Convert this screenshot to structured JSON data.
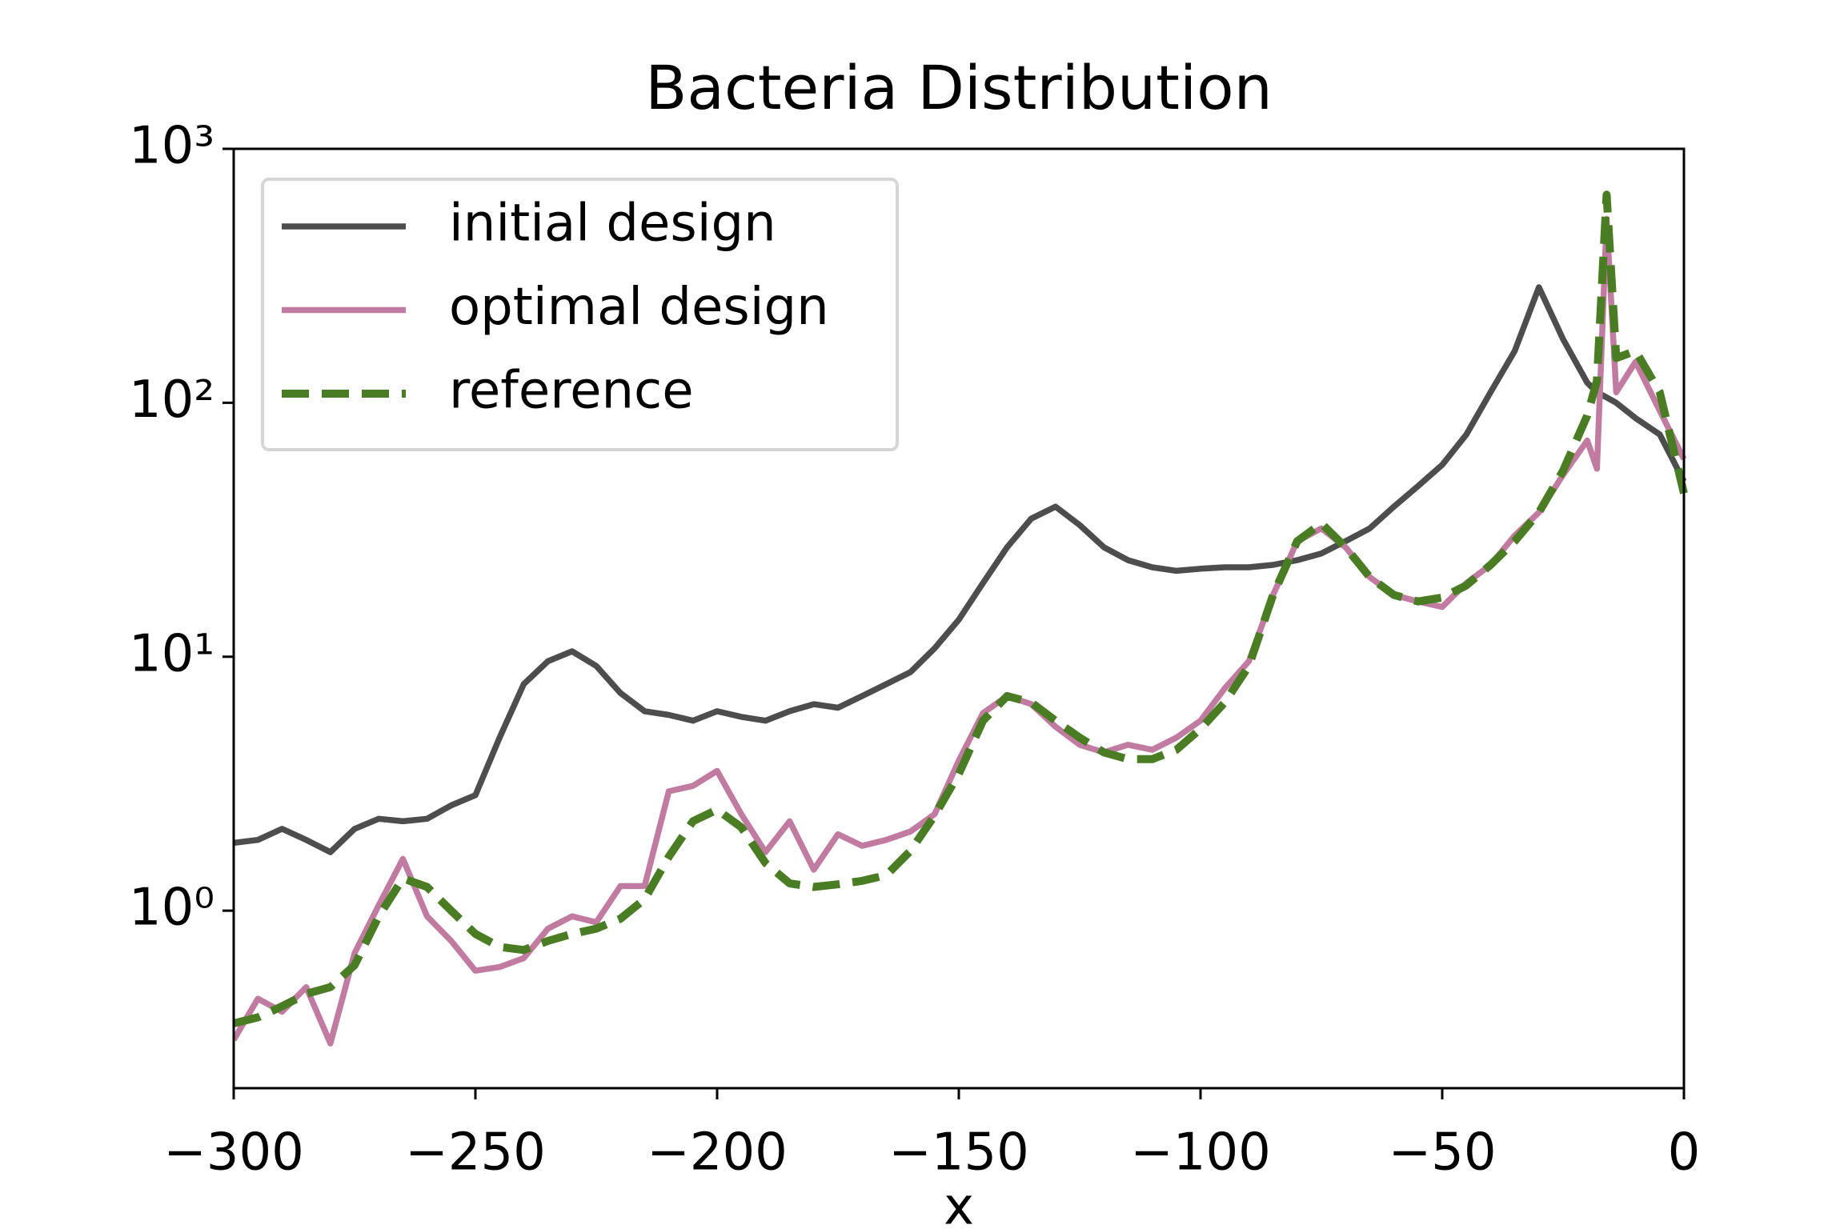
{
  "chart_data": {
    "type": "line",
    "title": "Bacteria Distribution",
    "x_label": "x",
    "log_y": true,
    "xlim": [
      -300,
      0
    ],
    "ylim": [
      0.2,
      1000
    ],
    "xticks": [
      {
        "value": -300,
        "label": "−300"
      },
      {
        "value": -250,
        "label": "−250"
      },
      {
        "value": -200,
        "label": "−200"
      },
      {
        "value": -150,
        "label": "−150"
      },
      {
        "value": -100,
        "label": "−100"
      },
      {
        "value": -50,
        "label": "−50"
      },
      0
    ],
    "yticks": [
      {
        "value": 1,
        "label": "10⁰"
      },
      {
        "value": 10,
        "label": "10¹"
      },
      {
        "value": 100,
        "label": "10²"
      },
      {
        "value": 1000,
        "label": "10³"
      }
    ],
    "legend_position": "upper-left",
    "x": [
      -300,
      -295,
      -290,
      -285,
      -280,
      -275,
      -270,
      -265,
      -260,
      -255,
      -250,
      -245,
      -240,
      -235,
      -230,
      -225,
      -220,
      -215,
      -210,
      -205,
      -200,
      -195,
      -190,
      -185,
      -180,
      -175,
      -170,
      -165,
      -160,
      -155,
      -150,
      -145,
      -140,
      -135,
      -130,
      -125,
      -120,
      -115,
      -110,
      -105,
      -100,
      -95,
      -90,
      -85,
      -80,
      -75,
      -70,
      -65,
      -60,
      -55,
      -50,
      -45,
      -40,
      -35,
      -30,
      -25,
      -20,
      -18,
      -16,
      -14,
      -10,
      -5,
      0
    ],
    "series": [
      {
        "name": "initial design",
        "color": "#4d4d4d",
        "dashed": false,
        "values": [
          1.85,
          1.9,
          2.1,
          1.9,
          1.7,
          2.1,
          2.3,
          2.25,
          2.3,
          2.6,
          2.85,
          4.8,
          7.8,
          9.6,
          10.5,
          9.2,
          7.2,
          6.1,
          5.9,
          5.6,
          6.1,
          5.8,
          5.6,
          6.1,
          6.5,
          6.3,
          7.0,
          7.8,
          8.7,
          10.8,
          14,
          19.5,
          27,
          35,
          39,
          33,
          27,
          24,
          22.5,
          21.8,
          22.2,
          22.5,
          22.5,
          23,
          24,
          25.5,
          28.5,
          32,
          39,
          47,
          57,
          75,
          110,
          160,
          285,
          178,
          120,
          110,
          105,
          100,
          87,
          75,
          49
        ]
      },
      {
        "name": "optimal design",
        "color": "#c27ba0",
        "dashed": false,
        "values": [
          0.31,
          0.45,
          0.4,
          0.5,
          0.3,
          0.68,
          1.05,
          1.6,
          0.95,
          0.76,
          0.58,
          0.6,
          0.65,
          0.85,
          0.95,
          0.9,
          1.25,
          1.25,
          2.95,
          3.1,
          3.55,
          2.4,
          1.7,
          2.25,
          1.45,
          2.0,
          1.8,
          1.9,
          2.05,
          2.4,
          3.9,
          6.0,
          7.0,
          6.5,
          5.3,
          4.5,
          4.2,
          4.5,
          4.3,
          4.8,
          5.6,
          7.5,
          9.6,
          17.5,
          28.5,
          32,
          27,
          20.6,
          17.5,
          16.5,
          15.7,
          19.5,
          23,
          30,
          37,
          52,
          71,
          55,
          530,
          110,
          145,
          93,
          60
        ]
      },
      {
        "name": "reference",
        "color": "#4a7c23",
        "dashed": true,
        "values": [
          0.36,
          0.38,
          0.42,
          0.47,
          0.5,
          0.61,
          0.95,
          1.34,
          1.24,
          1.0,
          0.81,
          0.72,
          0.7,
          0.76,
          0.81,
          0.85,
          0.93,
          1.11,
          1.63,
          2.25,
          2.5,
          2.13,
          1.54,
          1.28,
          1.24,
          1.27,
          1.31,
          1.38,
          1.72,
          2.37,
          3.46,
          5.6,
          7.0,
          6.6,
          5.6,
          4.8,
          4.2,
          3.95,
          3.95,
          4.3,
          5.2,
          6.6,
          9.2,
          17.5,
          28.5,
          33.5,
          27,
          20.6,
          17.5,
          16.5,
          17.1,
          19.1,
          23,
          28.5,
          37,
          54,
          89,
          122,
          660,
          150,
          160,
          110,
          44
        ]
      }
    ]
  }
}
